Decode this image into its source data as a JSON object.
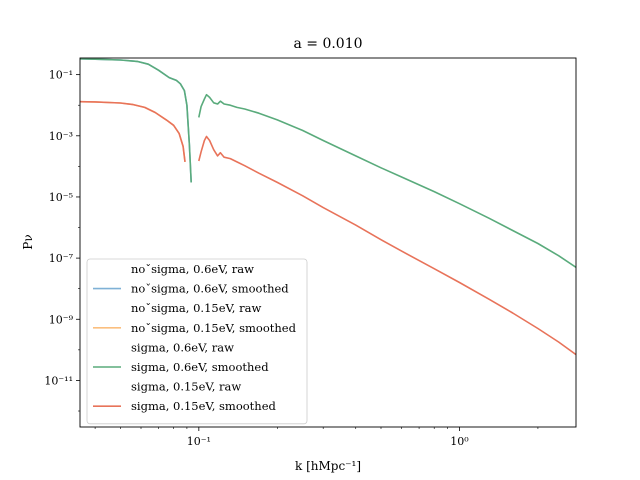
{
  "chart_data": {
    "type": "line",
    "title": "a = 0.010",
    "xlabel": "k [hMpc⁻¹]",
    "ylabel": "Pν",
    "xscale": "log",
    "yscale": "log",
    "xlim": [
      0.035,
      2.8
    ],
    "ylim": [
      3e-13,
      0.35
    ],
    "x_ticks": [
      {
        "value": 0.1,
        "label": "10⁻¹"
      },
      {
        "value": 1,
        "label": "10⁰"
      }
    ],
    "y_ticks": [
      {
        "value": 0.1,
        "label": "10⁻¹"
      },
      {
        "value": 0.001,
        "label": "10⁻³"
      },
      {
        "value": 1e-05,
        "label": "10⁻⁵"
      },
      {
        "value": 1e-07,
        "label": "10⁻⁷"
      },
      {
        "value": 1e-09,
        "label": "10⁻⁹"
      },
      {
        "value": 1e-11,
        "label": "10⁻¹¹"
      }
    ],
    "legend_position": "lower-left",
    "grid": false,
    "series": [
      {
        "name": "noˇsigma, 0.6eV, raw",
        "color": "#1f77b4",
        "show_line": false,
        "points": []
      },
      {
        "name": "noˇsigma, 0.6eV, smoothed",
        "color": "#7fb1d6",
        "show_line": true,
        "points": [
          [
            0.035,
            0.33
          ],
          [
            0.04,
            0.32
          ],
          [
            0.05,
            0.3
          ],
          [
            0.058,
            0.27
          ],
          [
            0.064,
            0.22
          ],
          [
            0.07,
            0.14
          ],
          [
            0.077,
            0.08
          ],
          [
            0.082,
            0.065
          ],
          [
            0.085,
            0.05
          ],
          [
            0.088,
            0.03
          ],
          [
            0.09,
            0.01
          ],
          [
            0.092,
            0.0005
          ],
          [
            0.0935,
            3e-05
          ]
        ]
      },
      {
        "name": "noˇsigma, 0.15eV, raw",
        "color": "#ff7f0e",
        "show_line": false,
        "points": []
      },
      {
        "name": "noˇsigma, 0.15eV, smoothed",
        "color": "#fbbf7f",
        "show_line": true,
        "points": [
          [
            0.035,
            0.013
          ],
          [
            0.04,
            0.0128
          ],
          [
            0.05,
            0.0118
          ],
          [
            0.056,
            0.0105
          ],
          [
            0.062,
            0.0085
          ],
          [
            0.068,
            0.0058
          ],
          [
            0.075,
            0.0033
          ],
          [
            0.08,
            0.0022
          ],
          [
            0.084,
            0.0012
          ],
          [
            0.087,
            0.00045
          ],
          [
            0.0885,
            0.00014
          ]
        ]
      },
      {
        "name": "sigma, 0.6eV, raw",
        "color": "#2ca02c",
        "show_line": false,
        "points": []
      },
      {
        "name": "sigma, 0.6eV, smoothed",
        "color": "#5aab7c",
        "show_line": true,
        "segments": [
          [
            [
              0.035,
              0.33
            ],
            [
              0.04,
              0.32
            ],
            [
              0.05,
              0.3
            ],
            [
              0.058,
              0.27
            ],
            [
              0.064,
              0.22
            ],
            [
              0.07,
              0.14
            ],
            [
              0.077,
              0.08
            ],
            [
              0.082,
              0.065
            ],
            [
              0.085,
              0.05
            ],
            [
              0.088,
              0.03
            ],
            [
              0.09,
              0.01
            ],
            [
              0.092,
              0.0005
            ],
            [
              0.0935,
              3e-05
            ]
          ],
          [
            [
              0.1,
              0.004
            ],
            [
              0.102,
              0.009
            ],
            [
              0.105,
              0.016
            ],
            [
              0.107,
              0.022
            ],
            [
              0.11,
              0.018
            ],
            [
              0.114,
              0.012
            ],
            [
              0.118,
              0.011
            ],
            [
              0.121,
              0.0135
            ],
            [
              0.125,
              0.011
            ],
            [
              0.132,
              0.01
            ],
            [
              0.14,
              0.0085
            ],
            [
              0.15,
              0.0075
            ],
            [
              0.17,
              0.0055
            ],
            [
              0.2,
              0.0033
            ],
            [
              0.25,
              0.0015
            ],
            [
              0.3,
              0.0007
            ],
            [
              0.4,
              0.00022
            ],
            [
              0.5,
              9e-05
            ],
            [
              0.6,
              4.5e-05
            ],
            [
              0.8,
              1.5e-05
            ],
            [
              1,
              6e-06
            ],
            [
              1.3,
              2e-06
            ],
            [
              1.6,
              8e-07
            ],
            [
              2,
              3e-07
            ],
            [
              2.4,
              1.2e-07
            ],
            [
              2.8,
              5e-08
            ]
          ]
        ]
      },
      {
        "name": "sigma, 0.15eV, raw",
        "color": "#d62728",
        "show_line": false,
        "points": []
      },
      {
        "name": "sigma, 0.15eV, smoothed",
        "color": "#e8735a",
        "show_line": true,
        "segments": [
          [
            [
              0.035,
              0.013
            ],
            [
              0.04,
              0.0128
            ],
            [
              0.05,
              0.0118
            ],
            [
              0.056,
              0.0105
            ],
            [
              0.062,
              0.0085
            ],
            [
              0.068,
              0.0058
            ],
            [
              0.075,
              0.0033
            ],
            [
              0.08,
              0.0022
            ],
            [
              0.084,
              0.0012
            ],
            [
              0.087,
              0.00045
            ],
            [
              0.0885,
              0.00014
            ]
          ],
          [
            [
              0.1,
              0.00015
            ],
            [
              0.102,
              0.0003
            ],
            [
              0.105,
              0.0007
            ],
            [
              0.107,
              0.00095
            ],
            [
              0.11,
              0.0007
            ],
            [
              0.114,
              0.00035
            ],
            [
              0.118,
              0.00022
            ],
            [
              0.121,
              0.00028
            ],
            [
              0.125,
              0.0002
            ],
            [
              0.132,
              0.00018
            ],
            [
              0.14,
              0.00014
            ],
            [
              0.15,
              0.000105
            ],
            [
              0.17,
              6e-05
            ],
            [
              0.2,
              3e-05
            ],
            [
              0.25,
              1.1e-05
            ],
            [
              0.3,
              4.5e-06
            ],
            [
              0.4,
              1.2e-06
            ],
            [
              0.5,
              4e-07
            ],
            [
              0.6,
              1.7e-07
            ],
            [
              0.8,
              4.5e-08
            ],
            [
              1,
              1.6e-08
            ],
            [
              1.3,
              4.5e-09
            ],
            [
              1.6,
              1.6e-09
            ],
            [
              2,
              5e-10
            ],
            [
              2.4,
              1.8e-10
            ],
            [
              2.8,
              7e-11
            ]
          ]
        ]
      }
    ]
  }
}
